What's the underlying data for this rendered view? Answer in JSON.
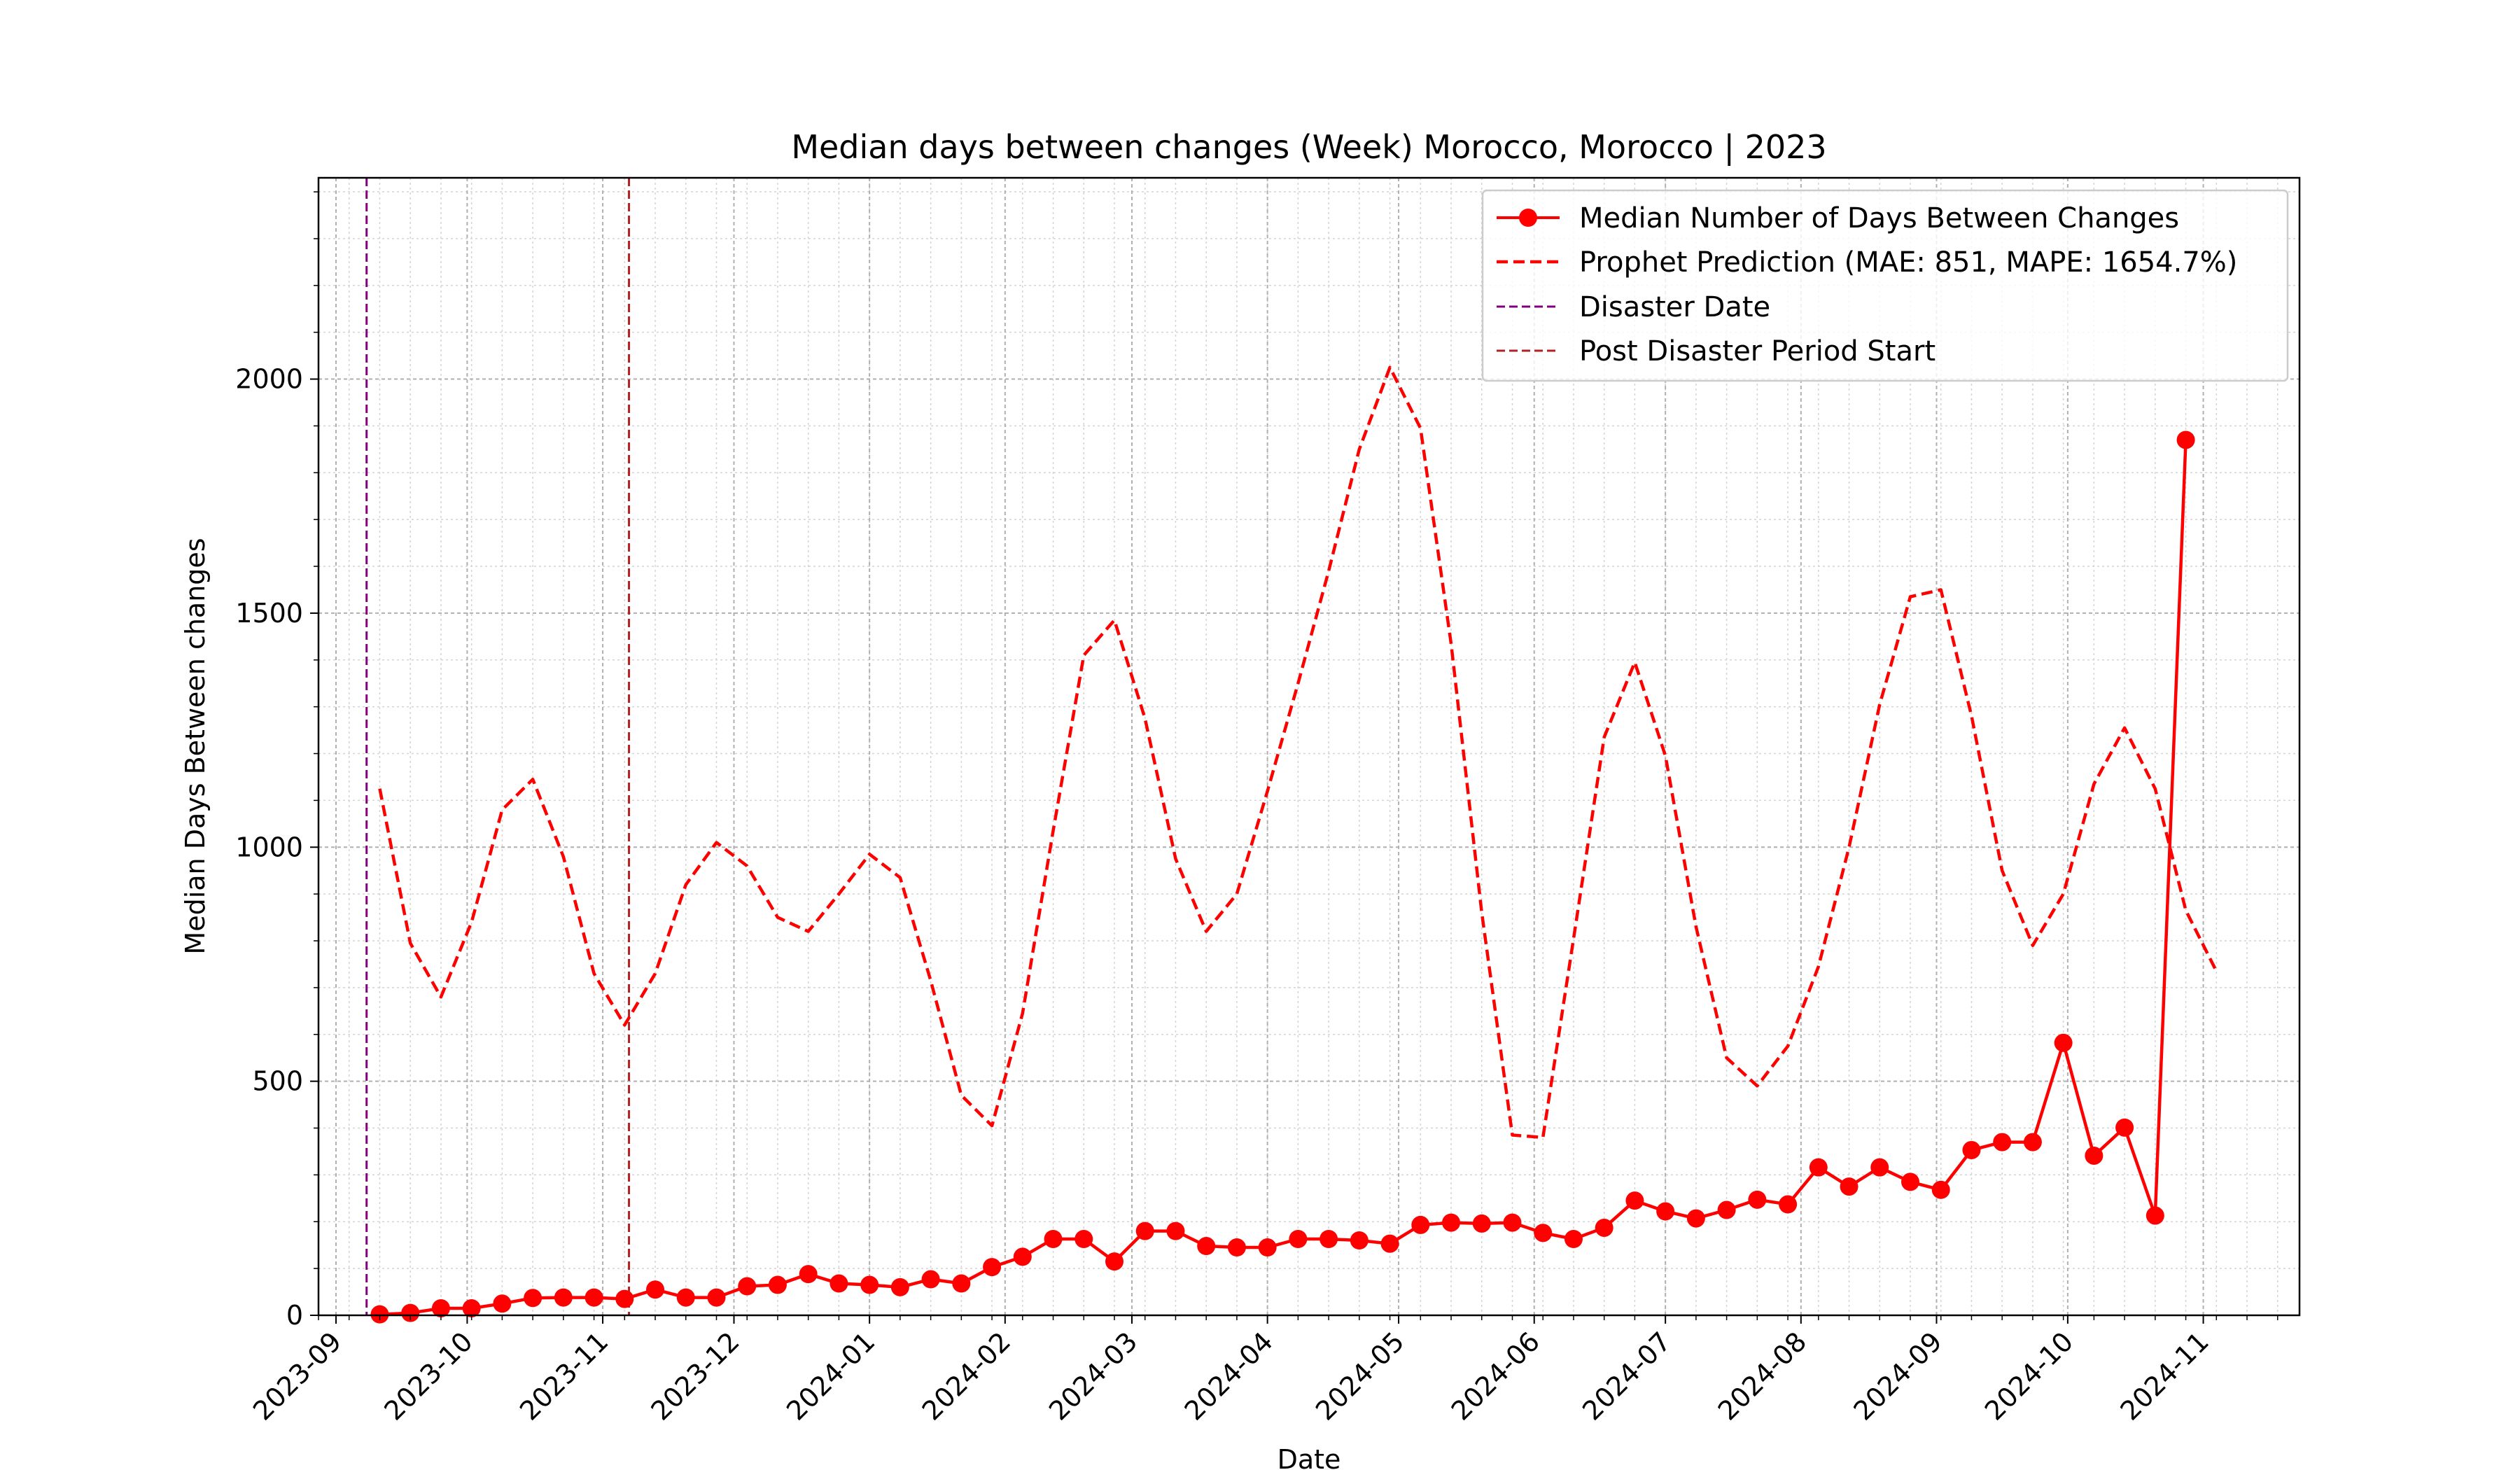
{
  "chart_data": {
    "type": "line",
    "title": "Median days between changes (Week) Morocco, Morocco | 2023",
    "xlabel": "Date",
    "ylabel": "Median Days Between changes",
    "xlim": [
      "2023-08-28",
      "2024-11-23"
    ],
    "ylim": [
      0,
      2430
    ],
    "yticks": [
      0,
      500,
      1000,
      1500,
      2000
    ],
    "xticks": [
      {
        "date": "2023-09-01",
        "label": "2023-09"
      },
      {
        "date": "2023-10-01",
        "label": "2023-10"
      },
      {
        "date": "2023-11-01",
        "label": "2023-11"
      },
      {
        "date": "2023-12-01",
        "label": "2023-12"
      },
      {
        "date": "2024-01-01",
        "label": "2024-01"
      },
      {
        "date": "2024-02-01",
        "label": "2024-02"
      },
      {
        "date": "2024-03-01",
        "label": "2024-03"
      },
      {
        "date": "2024-04-01",
        "label": "2024-04"
      },
      {
        "date": "2024-05-01",
        "label": "2024-05"
      },
      {
        "date": "2024-06-01",
        "label": "2024-06"
      },
      {
        "date": "2024-07-01",
        "label": "2024-07"
      },
      {
        "date": "2024-08-01",
        "label": "2024-08"
      },
      {
        "date": "2024-09-01",
        "label": "2024-09"
      },
      {
        "date": "2024-10-01",
        "label": "2024-10"
      },
      {
        "date": "2024-11-01",
        "label": "2024-11"
      }
    ],
    "grid": true,
    "legend_position": "top-right",
    "dates": [
      "2023-09-11",
      "2023-09-18",
      "2023-09-25",
      "2023-10-02",
      "2023-10-09",
      "2023-10-16",
      "2023-10-23",
      "2023-10-30",
      "2023-11-06",
      "2023-11-13",
      "2023-11-20",
      "2023-11-27",
      "2023-12-04",
      "2023-12-11",
      "2023-12-18",
      "2023-12-25",
      "2024-01-01",
      "2024-01-08",
      "2024-01-15",
      "2024-01-22",
      "2024-01-29",
      "2024-02-05",
      "2024-02-12",
      "2024-02-19",
      "2024-02-26",
      "2024-03-04",
      "2024-03-11",
      "2024-03-18",
      "2024-03-25",
      "2024-04-01",
      "2024-04-08",
      "2024-04-15",
      "2024-04-22",
      "2024-04-29",
      "2024-05-06",
      "2024-05-13",
      "2024-05-20",
      "2024-05-27",
      "2024-06-03",
      "2024-06-10",
      "2024-06-17",
      "2024-06-24",
      "2024-07-01",
      "2024-07-08",
      "2024-07-15",
      "2024-07-22",
      "2024-07-29",
      "2024-08-05",
      "2024-08-12",
      "2024-08-19",
      "2024-08-26",
      "2024-09-02",
      "2024-09-09",
      "2024-09-16",
      "2024-09-23",
      "2024-09-30",
      "2024-10-07",
      "2024-10-14",
      "2024-10-21",
      "2024-10-28",
      "2024-11-04"
    ],
    "series": [
      {
        "name": "Median Number of Days Between Changes",
        "color": "#ff0000",
        "style": "solid",
        "marker": "circle",
        "values": [
          2,
          5,
          15,
          15,
          25,
          37,
          38,
          38,
          35,
          55,
          38,
          38,
          62,
          65,
          88,
          68,
          65,
          60,
          77,
          68,
          103,
          125,
          163,
          163,
          115,
          180,
          180,
          148,
          145,
          145,
          163,
          163,
          160,
          153,
          193,
          198,
          196,
          198,
          176,
          163,
          187,
          245,
          222,
          207,
          225,
          247,
          237,
          316,
          275,
          316,
          285,
          268,
          353,
          370,
          370,
          582,
          341,
          401,
          213,
          1870,
          null
        ]
      },
      {
        "name": "Prophet Prediction (MAE: 851, MAPE: 1654.7%)",
        "color": "#ff0000",
        "style": "dashed",
        "values": [
          1125,
          795,
          680,
          840,
          1080,
          1145,
          980,
          730,
          620,
          730,
          920,
          1010,
          960,
          850,
          820,
          900,
          985,
          935,
          715,
          470,
          405,
          645,
          1035,
          1410,
          1485,
          1275,
          975,
          820,
          900,
          1120,
          1350,
          1590,
          1850,
          2025,
          1895,
          1435,
          860,
          385,
          380,
          805,
          1235,
          1395,
          1195,
          830,
          550,
          490,
          575,
          745,
          1000,
          1305,
          1535,
          1550,
          1280,
          950,
          790,
          900,
          1135,
          1255,
          1125,
          865,
          735
        ]
      }
    ],
    "vlines": [
      {
        "name": "Disaster Date",
        "date": "2023-09-08",
        "color": "#800080"
      },
      {
        "name": "Post Disaster Period Start",
        "date": "2023-11-07",
        "color": "#b22222"
      }
    ],
    "legend": [
      "Median Number of Days Between Changes",
      "Prophet Prediction (MAE: 851, MAPE: 1654.7%)",
      "Disaster Date",
      "Post Disaster Period Start"
    ]
  }
}
